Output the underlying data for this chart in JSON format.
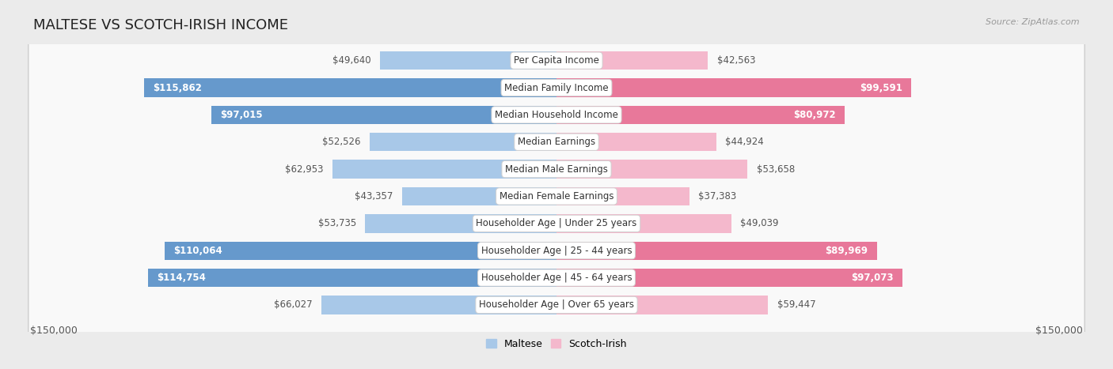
{
  "title": "MALTESE VS SCOTCH-IRISH INCOME",
  "source": "Source: ZipAtlas.com",
  "categories": [
    "Per Capita Income",
    "Median Family Income",
    "Median Household Income",
    "Median Earnings",
    "Median Male Earnings",
    "Median Female Earnings",
    "Householder Age | Under 25 years",
    "Householder Age | 25 - 44 years",
    "Householder Age | 45 - 64 years",
    "Householder Age | Over 65 years"
  ],
  "maltese_values": [
    49640,
    115862,
    97015,
    52526,
    62953,
    43357,
    53735,
    110064,
    114754,
    66027
  ],
  "scotch_irish_values": [
    42563,
    99591,
    80972,
    44924,
    53658,
    37383,
    49039,
    89969,
    97073,
    59447
  ],
  "maltese_labels": [
    "$49,640",
    "$115,862",
    "$97,015",
    "$52,526",
    "$62,953",
    "$43,357",
    "$53,735",
    "$110,064",
    "$114,754",
    "$66,027"
  ],
  "scotch_irish_labels": [
    "$42,563",
    "$99,591",
    "$80,972",
    "$44,924",
    "$53,658",
    "$37,383",
    "$49,039",
    "$89,969",
    "$97,073",
    "$59,447"
  ],
  "maltese_color_light": "#a8c8e8",
  "maltese_color_strong": "#6699cc",
  "scotch_irish_color_light": "#f4b8cc",
  "scotch_irish_color_strong": "#e8789a",
  "max_value": 150000,
  "background_color": "#ebebeb",
  "row_bg_color": "#f9f9f9",
  "title_fontsize": 13,
  "label_fontsize": 8.5,
  "category_fontsize": 8.5,
  "legend_fontsize": 9,
  "axis_label_fontsize": 9,
  "label_threshold": 60000
}
